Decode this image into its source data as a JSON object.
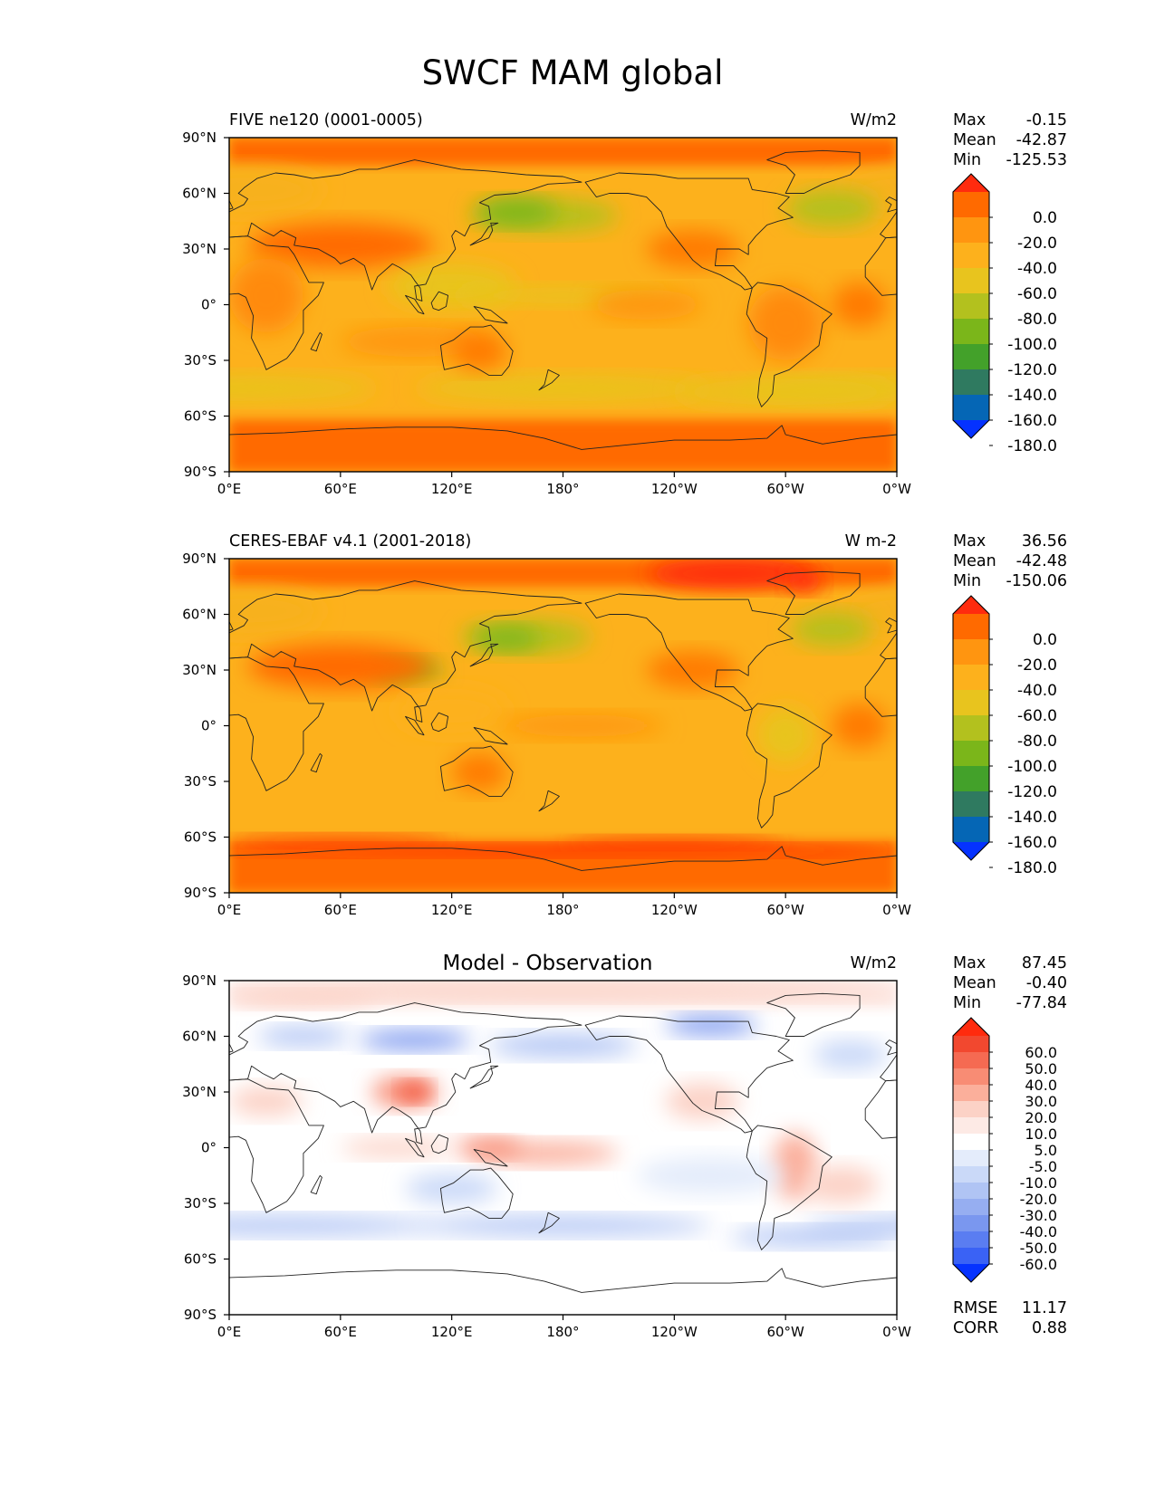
{
  "title": "SWCF MAM global",
  "chart_data": [
    {
      "type": "heatmap",
      "panel": "model",
      "title_left": "FIVE ne120 (0001-0005)",
      "title_center": "",
      "units": "W/m2",
      "stats": [
        {
          "label": "Max",
          "value": "-0.15"
        },
        {
          "label": "Mean",
          "value": "-42.87"
        },
        {
          "label": "Min",
          "value": "-125.53"
        }
      ],
      "x_ticks": [
        "0°E",
        "60°E",
        "120°E",
        "180°",
        "120°W",
        "60°W",
        "0°W"
      ],
      "y_ticks": [
        "90°N",
        "60°N",
        "30°N",
        "0°",
        "30°S",
        "60°S",
        "90°S"
      ],
      "xlim": [
        0,
        360
      ],
      "ylim": [
        -90,
        90
      ],
      "colorbar": {
        "colors": [
          "#ff2b0e",
          "#ff6a00",
          "#ff9510",
          "#fdb11c",
          "#e8c41e",
          "#b3c11e",
          "#7bb61a",
          "#43a12a",
          "#2f7a60",
          "#0566b5",
          "#0532ff"
        ],
        "labels": [
          "0.0",
          "-20.0",
          "-40.0",
          "-60.0",
          "-80.0",
          "-100.0",
          "-120.0",
          "-140.0",
          "-160.0",
          "-180.0"
        ]
      },
      "extra_stats": []
    },
    {
      "type": "heatmap",
      "panel": "observation",
      "title_left": "CERES-EBAF v4.1 (2001-2018)",
      "title_center": "",
      "units": "W m-2",
      "stats": [
        {
          "label": "Max",
          "value": "36.56"
        },
        {
          "label": "Mean",
          "value": "-42.48"
        },
        {
          "label": "Min",
          "value": "-150.06"
        }
      ],
      "x_ticks": [
        "0°E",
        "60°E",
        "120°E",
        "180°",
        "120°W",
        "60°W",
        "0°W"
      ],
      "y_ticks": [
        "90°N",
        "60°N",
        "30°N",
        "0°",
        "30°S",
        "60°S",
        "90°S"
      ],
      "xlim": [
        0,
        360
      ],
      "ylim": [
        -90,
        90
      ],
      "colorbar": {
        "colors": [
          "#ff2b0e",
          "#ff6a00",
          "#ff9510",
          "#fdb11c",
          "#e8c41e",
          "#b3c11e",
          "#7bb61a",
          "#43a12a",
          "#2f7a60",
          "#0566b5",
          "#0532ff"
        ],
        "labels": [
          "0.0",
          "-20.0",
          "-40.0",
          "-60.0",
          "-80.0",
          "-100.0",
          "-120.0",
          "-140.0",
          "-160.0",
          "-180.0"
        ]
      },
      "extra_stats": []
    },
    {
      "type": "heatmap",
      "panel": "difference",
      "title_left": "",
      "title_center": "Model - Observation",
      "units": "W/m2",
      "stats": [
        {
          "label": "Max",
          "value": "87.45"
        },
        {
          "label": "Mean",
          "value": "-0.40"
        },
        {
          "label": "Min",
          "value": "-77.84"
        }
      ],
      "x_ticks": [
        "0°E",
        "60°E",
        "120°E",
        "180°",
        "120°W",
        "60°W",
        "0°W"
      ],
      "y_ticks": [
        "90°N",
        "60°N",
        "30°N",
        "0°",
        "30°S",
        "60°S",
        "90°S"
      ],
      "xlim": [
        0,
        360
      ],
      "ylim": [
        -90,
        90
      ],
      "colorbar": {
        "colors": [
          "#ff2b0e",
          "#f2482f",
          "#f56a52",
          "#f88c74",
          "#fbaf9b",
          "#fcd2c6",
          "#fdeae5",
          "#ffffff",
          "#e4ecfb",
          "#cad9f8",
          "#b0c4f4",
          "#96aef1",
          "#7a97ef",
          "#5a7df1",
          "#3a62f5",
          "#0532ff"
        ],
        "labels": [
          "60.0",
          "50.0",
          "40.0",
          "30.0",
          "20.0",
          "10.0",
          "5.0",
          "-5.0",
          "-10.0",
          "-20.0",
          "-30.0",
          "-40.0",
          "-50.0",
          "-60.0"
        ]
      },
      "extra_stats": [
        {
          "label": "RMSE",
          "value": "11.17"
        },
        {
          "label": "CORR",
          "value": "0.88"
        }
      ]
    }
  ]
}
